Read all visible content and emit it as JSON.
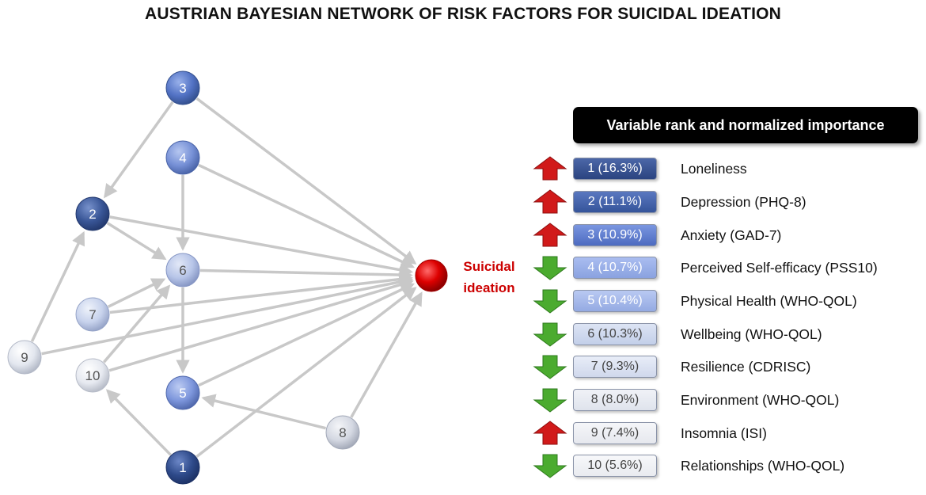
{
  "title": "AUSTRIAN BAYESIAN NETWORK OF RISK FACTORS FOR SUICIDAL IDEATION",
  "colors": {
    "target": "#dd0000",
    "arrow_up": "#d11a1a",
    "arrow_down": "#4bab2f",
    "edge": "#c8c8c8",
    "target_label": "#cc0000"
  },
  "network": {
    "target_label_line1": "Suicidal",
    "target_label_line2": "ideation",
    "nodes": [
      {
        "id": "1",
        "label": "1",
        "shade": 0
      },
      {
        "id": "2",
        "label": "2",
        "shade": 1
      },
      {
        "id": "3",
        "label": "3",
        "shade": 2
      },
      {
        "id": "4",
        "label": "4",
        "shade": 3
      },
      {
        "id": "5",
        "label": "5",
        "shade": 4
      },
      {
        "id": "6",
        "label": "6",
        "shade": 5
      },
      {
        "id": "7",
        "label": "7",
        "shade": 6
      },
      {
        "id": "8",
        "label": "8",
        "shade": 7
      },
      {
        "id": "9",
        "label": "9",
        "shade": 8
      },
      {
        "id": "10",
        "label": "10",
        "shade": 9
      }
    ],
    "edges": [
      [
        "3",
        "2"
      ],
      [
        "3",
        "T"
      ],
      [
        "4",
        "T"
      ],
      [
        "4",
        "6"
      ],
      [
        "2",
        "6"
      ],
      [
        "2",
        "T"
      ],
      [
        "6",
        "T"
      ],
      [
        "6",
        "5"
      ],
      [
        "7",
        "6"
      ],
      [
        "7",
        "T"
      ],
      [
        "9",
        "2"
      ],
      [
        "9",
        "T"
      ],
      [
        "10",
        "6"
      ],
      [
        "10",
        "T"
      ],
      [
        "5",
        "T"
      ],
      [
        "8",
        "5"
      ],
      [
        "8",
        "T"
      ],
      [
        "1",
        "10"
      ],
      [
        "1",
        "T"
      ]
    ]
  },
  "panel": {
    "header": "Variable rank and normalized importance",
    "rows": [
      {
        "rank": "1 (16.3%)",
        "label": "Loneliness",
        "direction": "up",
        "icon": "red-up-arrow-icon"
      },
      {
        "rank": "2 (11.1%)",
        "label": "Depression (PHQ-8)",
        "direction": "up",
        "icon": "red-up-arrow-icon"
      },
      {
        "rank": "3 (10.9%)",
        "label": "Anxiety (GAD-7)",
        "direction": "up",
        "icon": "red-up-arrow-icon"
      },
      {
        "rank": "4 (10.7%)",
        "label": "Perceived Self-efficacy (PSS10)",
        "direction": "down",
        "icon": "green-down-arrow-icon"
      },
      {
        "rank": "5 (10.4%)",
        "label": "Physical Health (WHO-QOL)",
        "direction": "down",
        "icon": "green-down-arrow-icon"
      },
      {
        "rank": "6 (10.3%)",
        "label": "Wellbeing (WHO-QOL)",
        "direction": "down",
        "icon": "green-down-arrow-icon"
      },
      {
        "rank": "7 (9.3%)",
        "label": "Resilience (CDRISC)",
        "direction": "down",
        "icon": "green-down-arrow-icon"
      },
      {
        "rank": "8 (8.0%)",
        "label": "Environment (WHO-QOL)",
        "direction": "down",
        "icon": "green-down-arrow-icon"
      },
      {
        "rank": "9 (7.4%)",
        "label": "Insomnia (ISI)",
        "direction": "up",
        "icon": "red-up-arrow-icon"
      },
      {
        "rank": "10 (5.6%)",
        "label": "Relationships (WHO-QOL)",
        "direction": "down",
        "icon": "green-down-arrow-icon"
      }
    ]
  }
}
